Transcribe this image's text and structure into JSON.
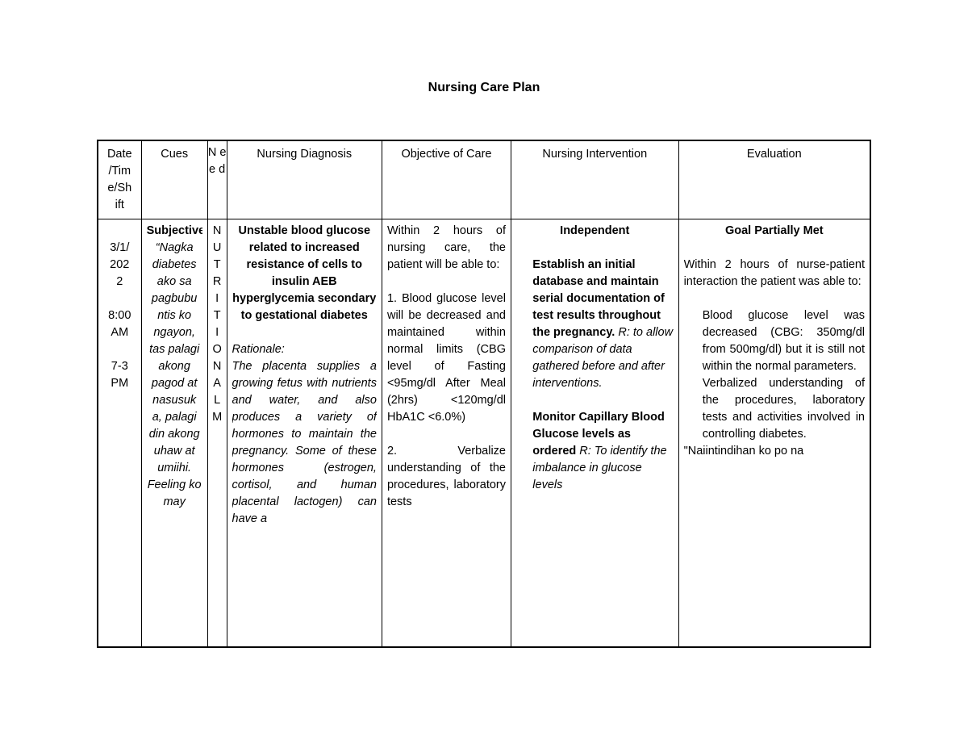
{
  "title": "Nursing Care Plan",
  "headers": {
    "date": "Date /Tim e/Sh ift",
    "cues": "Cues",
    "need": "N e e d",
    "diagnosis": "Nursing Diagnosis",
    "objective": "Objective of Care",
    "intervention": "Nursing Intervention",
    "evaluation": "Evaluation"
  },
  "row": {
    "date": "3/1/\n202\n2\n\n8:00\nAM\n\n7-3\nPM",
    "cues_heading": "Subjective:",
    "cues_quote": "“Nagka diabetes ako sa pagbubu ntis ko ngayon, tas palagi akong pagod at nasusuk a, palagi din akong uhaw at umiihi. Feeling ko may",
    "need_letters": [
      "N",
      "U",
      "T",
      "R",
      "I",
      "T",
      "I",
      "O",
      "N",
      "A",
      "L",
      "M"
    ],
    "dx_bold": "Unstable blood glucose related to increased resistance of cells to insulin AEB hyperglycemia secondary to gestational diabetes",
    "dx_rat_label": "Rationale:",
    "dx_rat_text": "The placenta supplies a growing fetus with nutrients and water, and also produces a variety of hormones to maintain the pregnancy. Some of these hormones (estrogen, cortisol, and human placental lactogen) can have a",
    "obj_intro": "Within 2 hours of nursing care, the patient will be able to:",
    "obj_1": "1. Blood glucose level will be decreased and maintained within normal limits (CBG level of Fasting <95mg/dl After Meal (2hrs) <120mg/dl HbA1C <6.0%)",
    "obj_2": "2. Verbalize understanding of the procedures, laboratory tests",
    "int_heading": "Independent",
    "int_1_bold": "Establish an initial database and maintain serial documentation of test results throughout the pregnancy.",
    "int_1_rat": " R: to allow comparison of data gathered before and after interventions.",
    "int_2_bold": "Monitor Capillary Blood Glucose levels as ordered",
    "int_2_rat": " R: To identify the imbalance in glucose levels",
    "eval_heading": "Goal Partially Met",
    "eval_intro": "Within 2 hours of nurse-patient interaction the patient was able to:",
    "eval_A": "Blood glucose level was decreased (CBG: 350mg/dl from 500mg/dl) but it is still not within the normal parameters.",
    "eval_B": "Verbalized understanding of the procedures, laboratory tests and activities involved in controlling diabetes.",
    "eval_quote": "\"Naiintindihan ko po na"
  },
  "style": {
    "font_family": "Arial",
    "font_size_pt": 11,
    "title_size_pt": 12,
    "border_color": "#000000",
    "background_color": "#ffffff",
    "text_color": "#000000"
  }
}
